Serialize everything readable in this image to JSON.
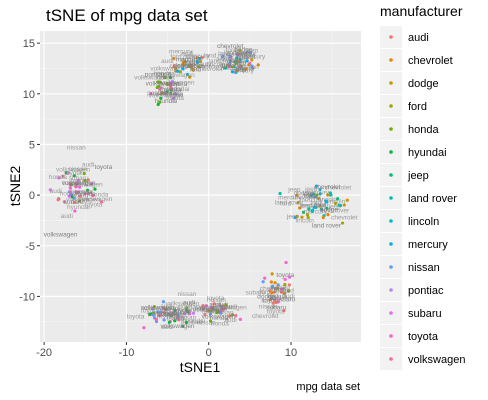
{
  "chart_data": {
    "type": "scatter",
    "title": "tSNE of mpg data set",
    "xlabel": "tSNE1",
    "ylabel": "tSNE2",
    "caption": "mpg data set",
    "xlim": [
      -20.5,
      18.5
    ],
    "ylim": [
      -14.5,
      16.2
    ],
    "x_ticks": [
      -20,
      -10,
      0,
      10
    ],
    "y_ticks": [
      -10,
      -5,
      0,
      5,
      10,
      15
    ],
    "grid": true,
    "legend": {
      "title": "manufacturer",
      "placement": "right",
      "entries": [
        {
          "name": "audi",
          "color": "#F8766D"
        },
        {
          "name": "chevrolet",
          "color": "#E58700"
        },
        {
          "name": "dodge",
          "color": "#C99800"
        },
        {
          "name": "ford",
          "color": "#A3A500"
        },
        {
          "name": "honda",
          "color": "#6BB100"
        },
        {
          "name": "hyundai",
          "color": "#00BA38"
        },
        {
          "name": "jeep",
          "color": "#00BF7D"
        },
        {
          "name": "land rover",
          "color": "#00C0AF"
        },
        {
          "name": "lincoln",
          "color": "#00BCD8"
        },
        {
          "name": "mercury",
          "color": "#00B0F6"
        },
        {
          "name": "nissan",
          "color": "#619CFF"
        },
        {
          "name": "pontiac",
          "color": "#B983FF"
        },
        {
          "name": "subaru",
          "color": "#E76BF3"
        },
        {
          "name": "toyota",
          "color": "#FD61D1"
        },
        {
          "name": "volkswagen",
          "color": "#FF67A4"
        }
      ]
    },
    "clusters": [
      {
        "cx": 3.5,
        "cy": 13.2,
        "sx": 1.4,
        "sy": 0.7,
        "n": 40,
        "mix": [
          "chevrolet",
          "dodge",
          "ford",
          "jeep",
          "land rover",
          "lincoln",
          "mercury",
          "nissan",
          "toyota"
        ],
        "labels": [
          {
            "text": "chevrolet",
            "x": 2.6,
            "y": 14.5
          },
          {
            "text": "dodge",
            "x": 4.2,
            "y": 14.2
          },
          {
            "text": "ford",
            "x": 5.0,
            "y": 13.6
          },
          {
            "text": "jeep",
            "x": 3.8,
            "y": 12.9
          },
          {
            "text": "mercury",
            "x": 2.8,
            "y": 12.6
          },
          {
            "text": "toyota",
            "x": 4.4,
            "y": 12.3
          }
        ]
      },
      {
        "cx": -2.5,
        "cy": 12.8,
        "sx": 1.2,
        "sy": 0.6,
        "n": 26,
        "mix": [
          "dodge",
          "ford",
          "chevrolet",
          "mercury",
          "audi"
        ],
        "labels": [
          {
            "text": "dodge",
            "x": -3.2,
            "y": 12.6
          },
          {
            "text": "ford",
            "x": -1.6,
            "y": 12.2
          },
          {
            "text": "mercury",
            "x": -2.6,
            "y": 13.2
          }
        ]
      },
      {
        "cx": -5.0,
        "cy": 10.6,
        "sx": 1.1,
        "sy": 0.8,
        "n": 28,
        "mix": [
          "hyundai",
          "pontiac",
          "toyota",
          "volkswagen",
          "honda"
        ],
        "labels": [
          {
            "text": "pontiac",
            "x": -6.5,
            "y": 11.7
          },
          {
            "text": "volkswagen",
            "x": -5.6,
            "y": 10.8
          },
          {
            "text": "toyota",
            "x": -4.4,
            "y": 10.2
          },
          {
            "text": "hyundai",
            "x": -5.2,
            "y": 9.1
          }
        ]
      },
      {
        "cx": -15.8,
        "cy": 0.3,
        "sx": 1.4,
        "sy": 1.1,
        "n": 38,
        "mix": [
          "audi",
          "honda",
          "hyundai",
          "nissan",
          "subaru",
          "toyota",
          "volkswagen"
        ],
        "labels": [
          {
            "text": "toyota",
            "x": -12.8,
            "y": 2.6
          },
          {
            "text": "volkswagen",
            "x": -15.8,
            "y": 1.0
          },
          {
            "text": "honda",
            "x": -15.2,
            "y": 0.1
          },
          {
            "text": "subaru",
            "x": -16.4,
            "y": -0.9
          },
          {
            "text": "volkswagen",
            "x": -18.0,
            "y": -4.1
          }
        ]
      },
      {
        "cx": 13.2,
        "cy": -0.8,
        "sx": 1.6,
        "sy": 0.9,
        "n": 42,
        "mix": [
          "chevrolet",
          "dodge",
          "ford",
          "jeep",
          "land rover",
          "lincoln",
          "mercury"
        ],
        "labels": [
          {
            "text": "chevrolet",
            "x": 14.4,
            "y": 0.6
          },
          {
            "text": "ford",
            "x": 12.2,
            "y": -0.3
          },
          {
            "text": "dodge",
            "x": 14.6,
            "y": -1.6
          },
          {
            "text": "land rover",
            "x": 14.3,
            "y": -3.2
          }
        ]
      },
      {
        "cx": 8.2,
        "cy": -9.7,
        "sx": 1.2,
        "sy": 1.2,
        "n": 30,
        "mix": [
          "audi",
          "chevrolet",
          "dodge",
          "ford",
          "nissan",
          "subaru",
          "toyota"
        ],
        "labels": [
          {
            "text": "toyota",
            "x": 9.3,
            "y": -8.1
          },
          {
            "text": "dodge",
            "x": 7.0,
            "y": -10.2
          },
          {
            "text": "subaru",
            "x": 8.2,
            "y": -11.3
          }
        ]
      },
      {
        "cx": -4.6,
        "cy": -11.8,
        "sx": 1.7,
        "sy": 0.6,
        "n": 40,
        "mix": [
          "audi",
          "volkswagen",
          "toyota",
          "honda",
          "hyundai",
          "nissan",
          "pontiac"
        ],
        "labels": [
          {
            "text": "volkswagen",
            "x": -6.2,
            "y": -11.3
          },
          {
            "text": "toyota",
            "x": -3.2,
            "y": -11.6
          },
          {
            "text": "audi",
            "x": -2.4,
            "y": -10.8
          },
          {
            "text": "volkswagen",
            "x": -3.8,
            "y": -13.1
          }
        ]
      },
      {
        "cx": 1.0,
        "cy": -11.6,
        "sx": 1.2,
        "sy": 0.7,
        "n": 28,
        "mix": [
          "audi",
          "volkswagen",
          "toyota",
          "nissan",
          "honda"
        ],
        "labels": [
          {
            "text": "audi",
            "x": 0.8,
            "y": -11.0
          },
          {
            "text": "volkswagen",
            "x": 1.2,
            "y": -12.2
          }
        ]
      }
    ]
  }
}
